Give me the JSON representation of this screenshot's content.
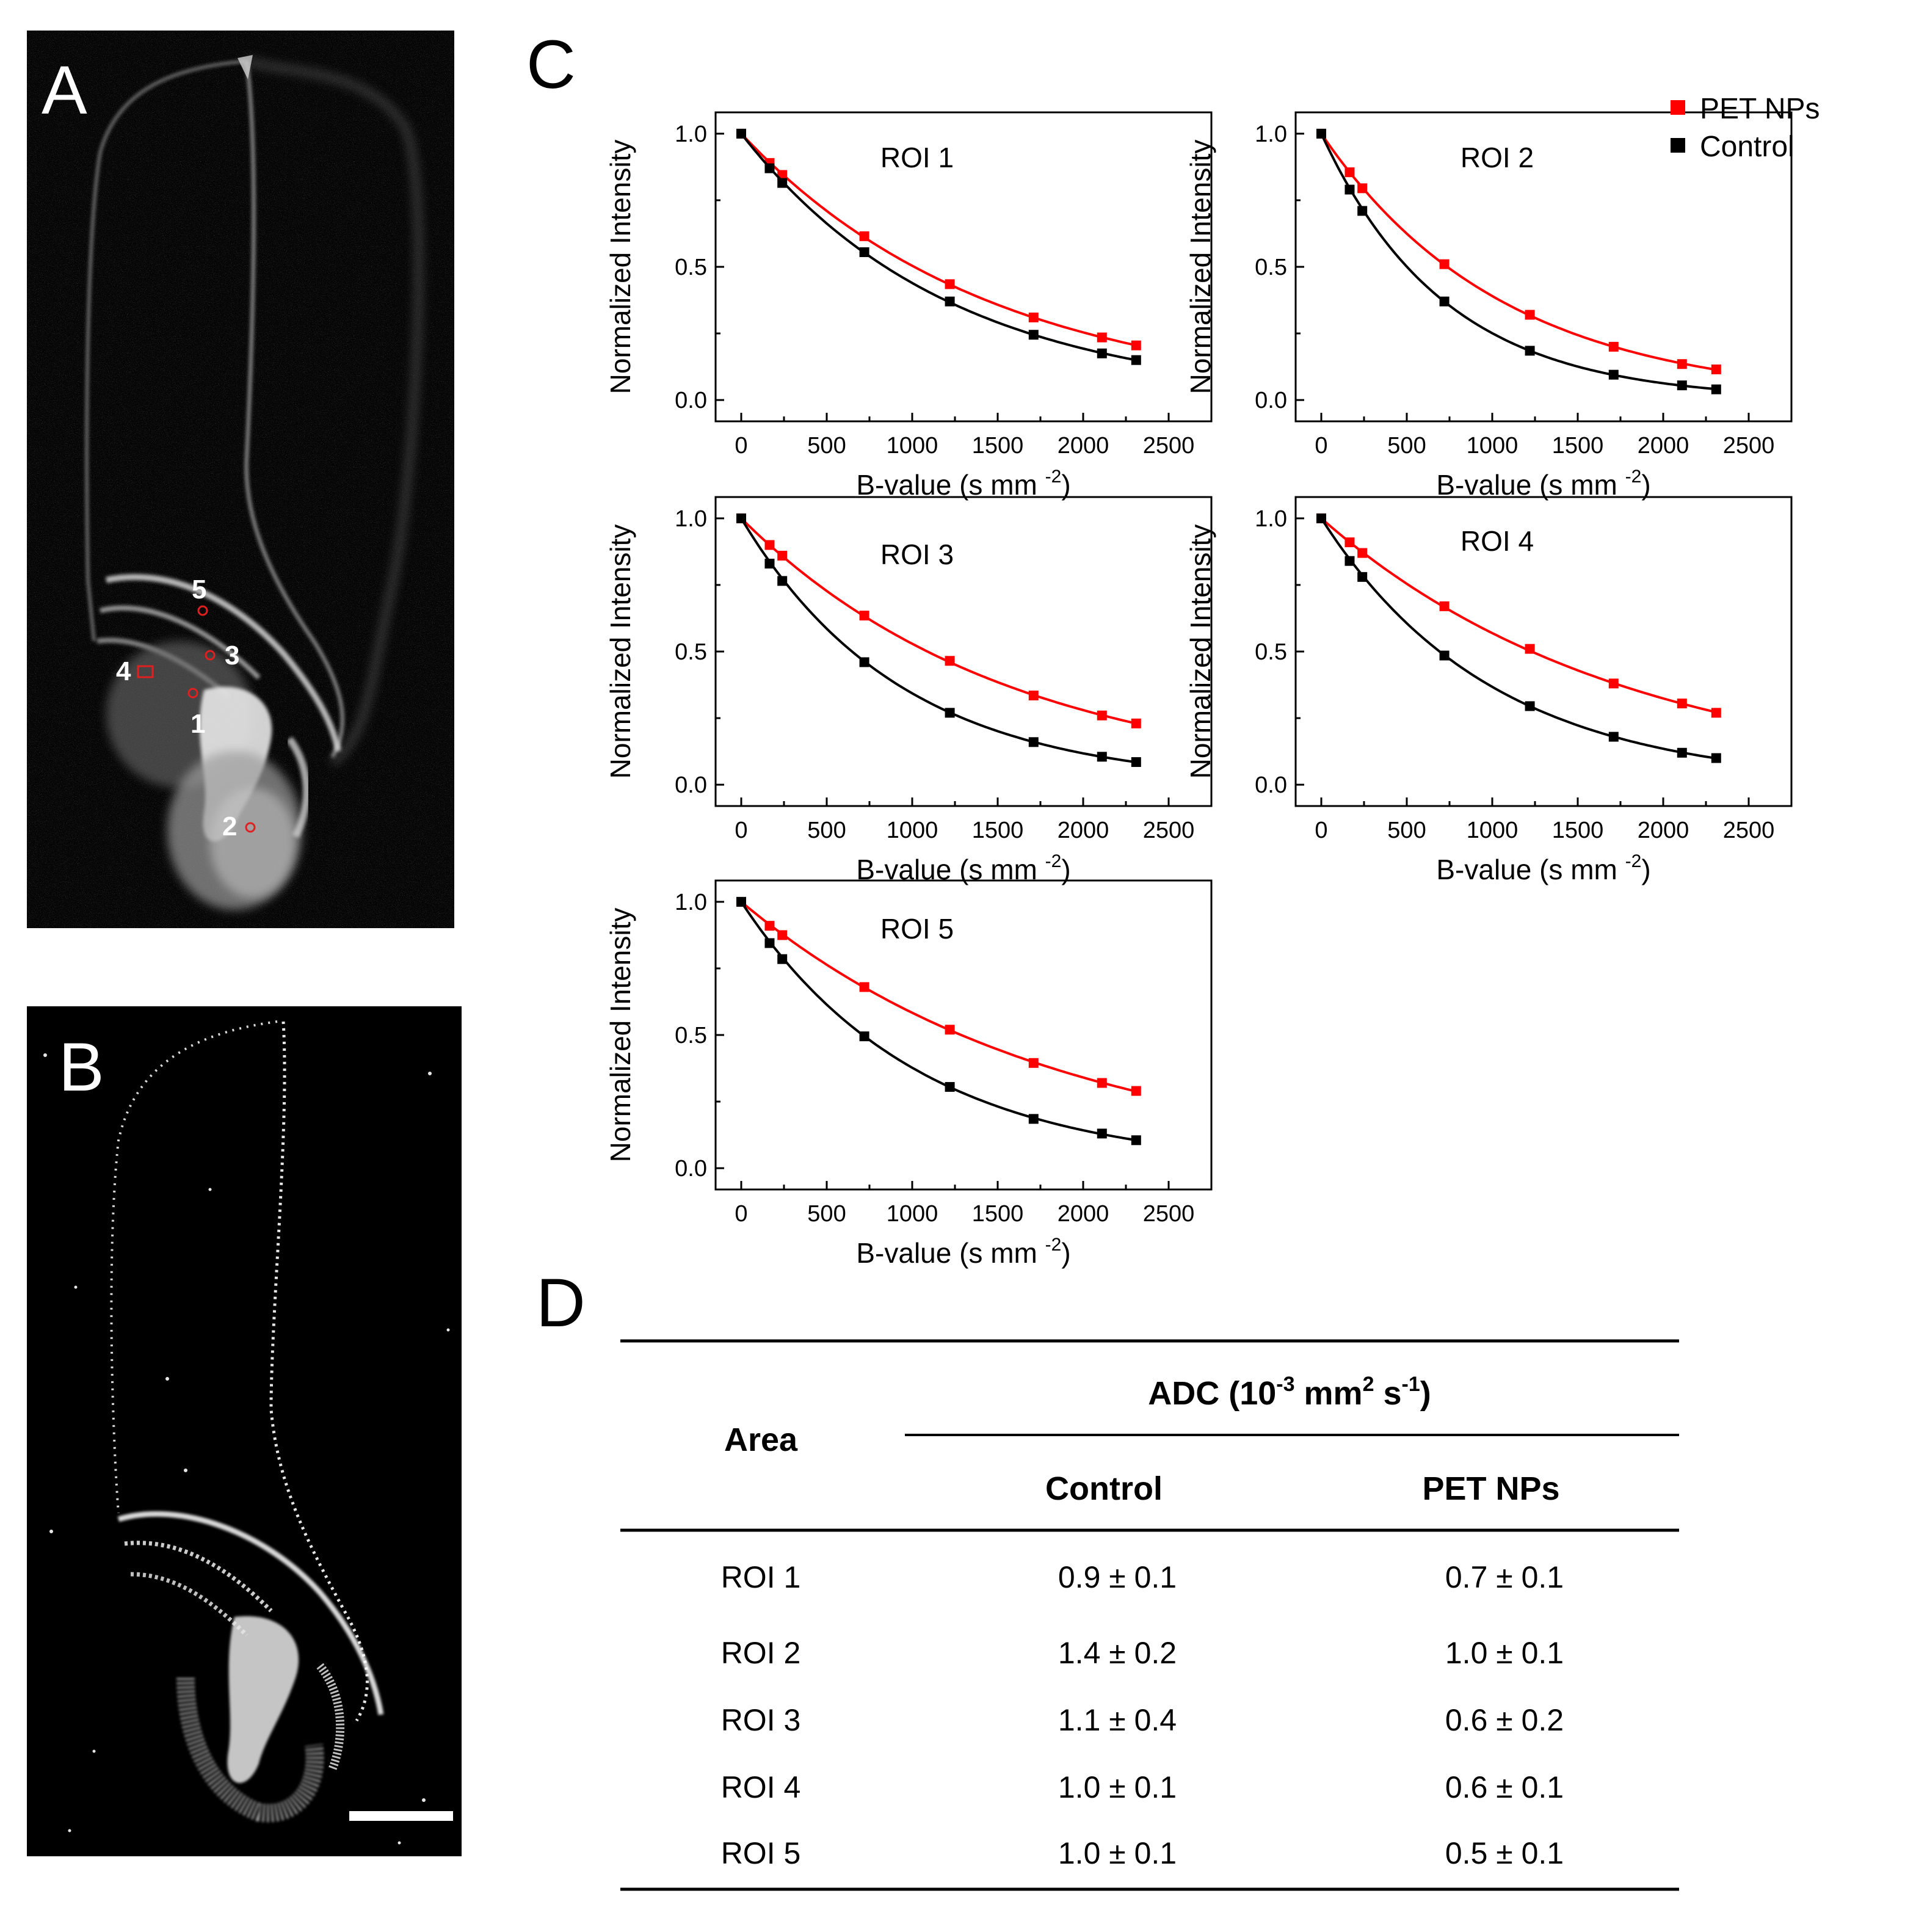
{
  "panels": {
    "a": "A",
    "b": "B",
    "c": "C",
    "d": "D"
  },
  "mri_a": {
    "roi_labels": [
      "1",
      "2",
      "3",
      "4",
      "5"
    ],
    "marker_color": "#e02020"
  },
  "colors": {
    "pet": "#ff0000",
    "control": "#000000"
  },
  "legend": {
    "placement": "top-right",
    "entries": [
      "PET NPs",
      "Control"
    ]
  },
  "chart_data": [
    {
      "type": "line",
      "title": "ROI 1",
      "xlabel": "B-value (s mm",
      "xlabel_sup": "-2",
      "xlabel_close": ")",
      "ylabel": "Normalized Intensity",
      "xlim": [
        -150,
        2750
      ],
      "ylim": [
        -0.08,
        1.08
      ],
      "xticks": [
        "0",
        "500",
        "1000",
        "1500",
        "2000",
        "2500"
      ],
      "yticks": [
        "0.0",
        "0.5",
        "1.0"
      ],
      "x": [
        0,
        166,
        240,
        720,
        1220,
        1710,
        2110,
        2310
      ],
      "series": [
        {
          "name": "PET NPs",
          "values": [
            1.0,
            0.89,
            0.845,
            0.615,
            0.435,
            0.31,
            0.235,
            0.205
          ]
        },
        {
          "name": "Control",
          "values": [
            1.0,
            0.87,
            0.815,
            0.555,
            0.37,
            0.245,
            0.175,
            0.15
          ]
        }
      ]
    },
    {
      "type": "line",
      "title": "ROI 2",
      "xlabel": "B-value (s mm",
      "xlabel_sup": "-2",
      "xlabel_close": ")",
      "ylabel": "Normalized Intensity",
      "xlim": [
        -150,
        2750
      ],
      "ylim": [
        -0.08,
        1.08
      ],
      "xticks": [
        "0",
        "500",
        "1000",
        "1500",
        "2000",
        "2500"
      ],
      "yticks": [
        "0.0",
        "0.5",
        "1.0"
      ],
      "x": [
        0,
        166,
        240,
        720,
        1220,
        1710,
        2110,
        2310
      ],
      "series": [
        {
          "name": "PET NPs",
          "values": [
            1.0,
            0.855,
            0.795,
            0.51,
            0.32,
            0.2,
            0.135,
            0.115
          ]
        },
        {
          "name": "Control",
          "values": [
            1.0,
            0.79,
            0.71,
            0.37,
            0.185,
            0.095,
            0.055,
            0.04
          ]
        }
      ]
    },
    {
      "type": "line",
      "title": "ROI 3",
      "xlabel": "B-value (s mm",
      "xlabel_sup": "-2",
      "xlabel_close": ")",
      "ylabel": "Normalized Intensity",
      "xlim": [
        -150,
        2750
      ],
      "ylim": [
        -0.08,
        1.08
      ],
      "xticks": [
        "0",
        "500",
        "1000",
        "1500",
        "2000",
        "2500"
      ],
      "yticks": [
        "0.0",
        "0.5",
        "1.0"
      ],
      "x": [
        0,
        166,
        240,
        720,
        1220,
        1710,
        2110,
        2310
      ],
      "series": [
        {
          "name": "PET NPs",
          "values": [
            1.0,
            0.9,
            0.86,
            0.635,
            0.465,
            0.335,
            0.26,
            0.23
          ]
        },
        {
          "name": "Control",
          "values": [
            1.0,
            0.83,
            0.765,
            0.46,
            0.27,
            0.16,
            0.105,
            0.085
          ]
        }
      ]
    },
    {
      "type": "line",
      "title": "ROI 4",
      "xlabel": "B-value (s mm",
      "xlabel_sup": "-2",
      "xlabel_close": ")",
      "ylabel": "Normalized Intensity",
      "xlim": [
        -150,
        2750
      ],
      "ylim": [
        -0.08,
        1.08
      ],
      "xticks": [
        "0",
        "500",
        "1000",
        "1500",
        "2000",
        "2500"
      ],
      "yticks": [
        "0.0",
        "0.5",
        "1.0"
      ],
      "x": [
        0,
        166,
        240,
        720,
        1220,
        1710,
        2110,
        2310
      ],
      "series": [
        {
          "name": "PET NPs",
          "values": [
            1.0,
            0.91,
            0.87,
            0.67,
            0.51,
            0.38,
            0.305,
            0.27
          ]
        },
        {
          "name": "Control",
          "values": [
            1.0,
            0.84,
            0.78,
            0.485,
            0.295,
            0.18,
            0.12,
            0.1
          ]
        }
      ]
    },
    {
      "type": "line",
      "title": "ROI 5",
      "xlabel": "B-value (s mm",
      "xlabel_sup": "-2",
      "xlabel_close": ")",
      "ylabel": "Normalized Intensity",
      "xlim": [
        -150,
        2750
      ],
      "ylim": [
        -0.08,
        1.08
      ],
      "xticks": [
        "0",
        "500",
        "1000",
        "1500",
        "2000",
        "2500"
      ],
      "yticks": [
        "0.0",
        "0.5",
        "1.0"
      ],
      "x": [
        0,
        166,
        240,
        720,
        1220,
        1710,
        2110,
        2310
      ],
      "series": [
        {
          "name": "PET NPs",
          "values": [
            1.0,
            0.91,
            0.875,
            0.68,
            0.52,
            0.395,
            0.32,
            0.29
          ]
        },
        {
          "name": "Control",
          "values": [
            1.0,
            0.845,
            0.785,
            0.495,
            0.305,
            0.185,
            0.13,
            0.105
          ]
        }
      ]
    }
  ],
  "table": {
    "area_header": "Area",
    "adc_prefix": "ADC (10",
    "adc_exp1": "-3",
    "adc_mid": " mm",
    "adc_exp2": "2",
    "adc_s": " s",
    "adc_exp3": "-1",
    "adc_close": ")",
    "col_control": "Control",
    "col_pet": "PET NPs",
    "rows": [
      {
        "area": "ROI 1",
        "control": "0.9 ± 0.1",
        "pet": "0.7 ± 0.1"
      },
      {
        "area": "ROI 2",
        "control": "1.4 ± 0.2",
        "pet": "1.0 ± 0.1"
      },
      {
        "area": "ROI 3",
        "control": "1.1 ± 0.4",
        "pet": "0.6 ± 0.2"
      },
      {
        "area": "ROI 4",
        "control": "1.0 ± 0.1",
        "pet": "0.6 ± 0.1"
      },
      {
        "area": "ROI 5",
        "control": "1.0 ± 0.1",
        "pet": "0.5 ± 0.1"
      }
    ]
  }
}
